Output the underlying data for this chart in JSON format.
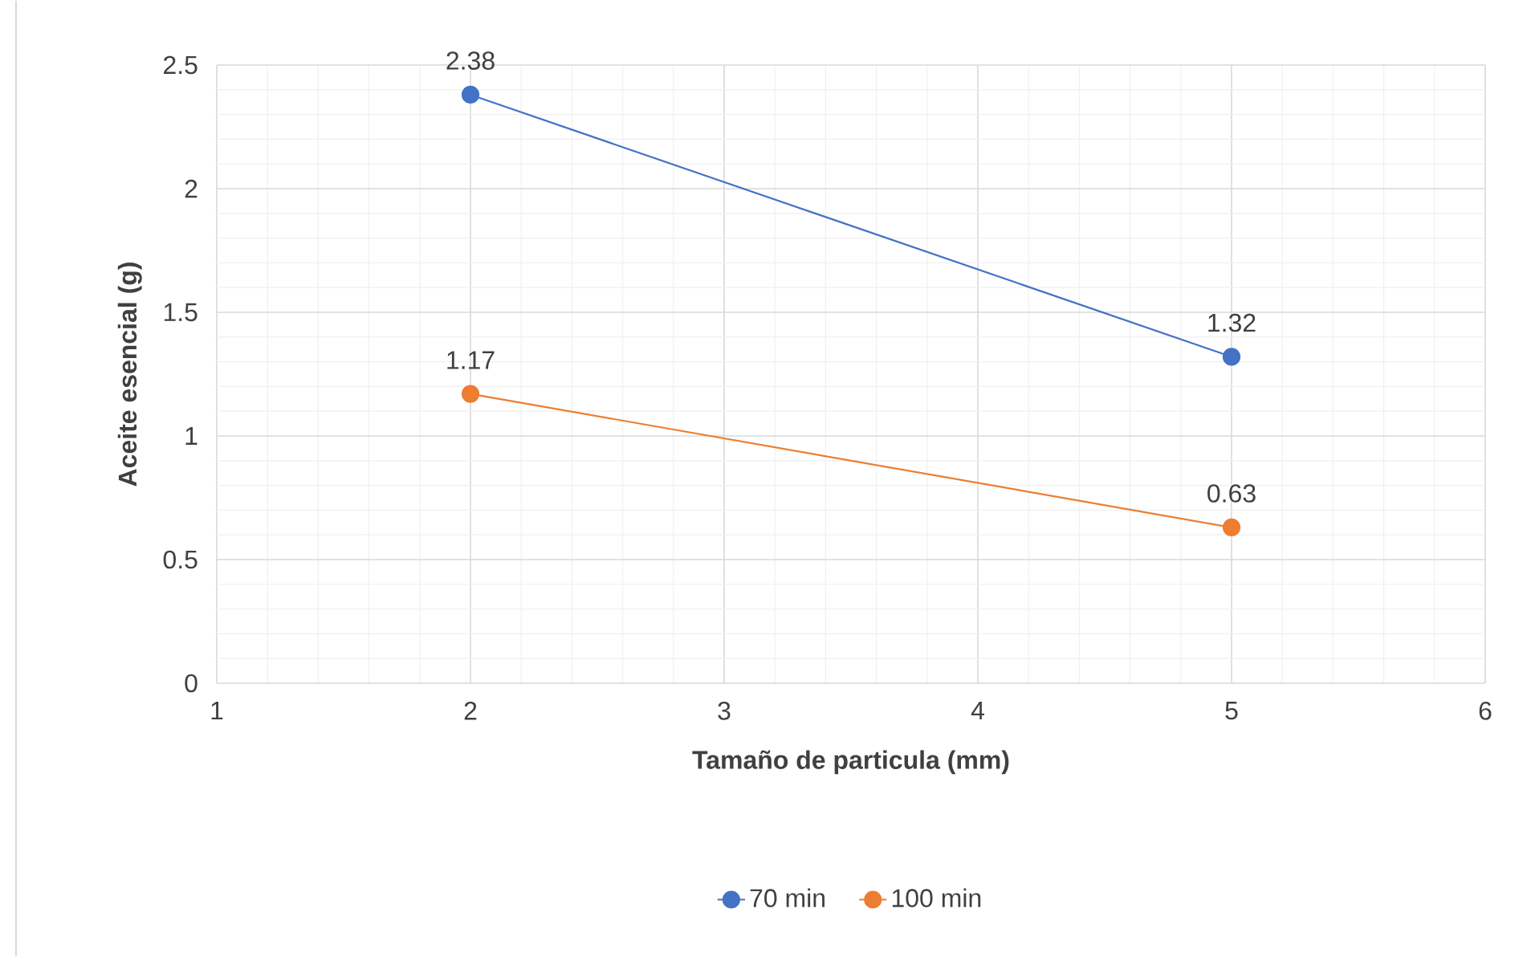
{
  "chart_data": {
    "type": "line",
    "xlabel": "Tamaño de particula (mm)",
    "ylabel": "Aceite esencial (g)",
    "x": [
      2,
      5
    ],
    "series": [
      {
        "name": "70 min",
        "color": "#4472c4",
        "values": [
          2.38,
          1.32
        ]
      },
      {
        "name": "100 min",
        "color": "#ed7d31",
        "values": [
          1.17,
          0.63
        ]
      }
    ],
    "xlim": [
      1,
      6
    ],
    "ylim": [
      0,
      2.5
    ],
    "xticks": [
      1,
      2,
      3,
      4,
      5,
      6
    ],
    "yticks": [
      0,
      0.5,
      1,
      1.5,
      2,
      2.5
    ],
    "grid": true,
    "legend": "bottom",
    "marker": "circle",
    "data_labels": true
  }
}
